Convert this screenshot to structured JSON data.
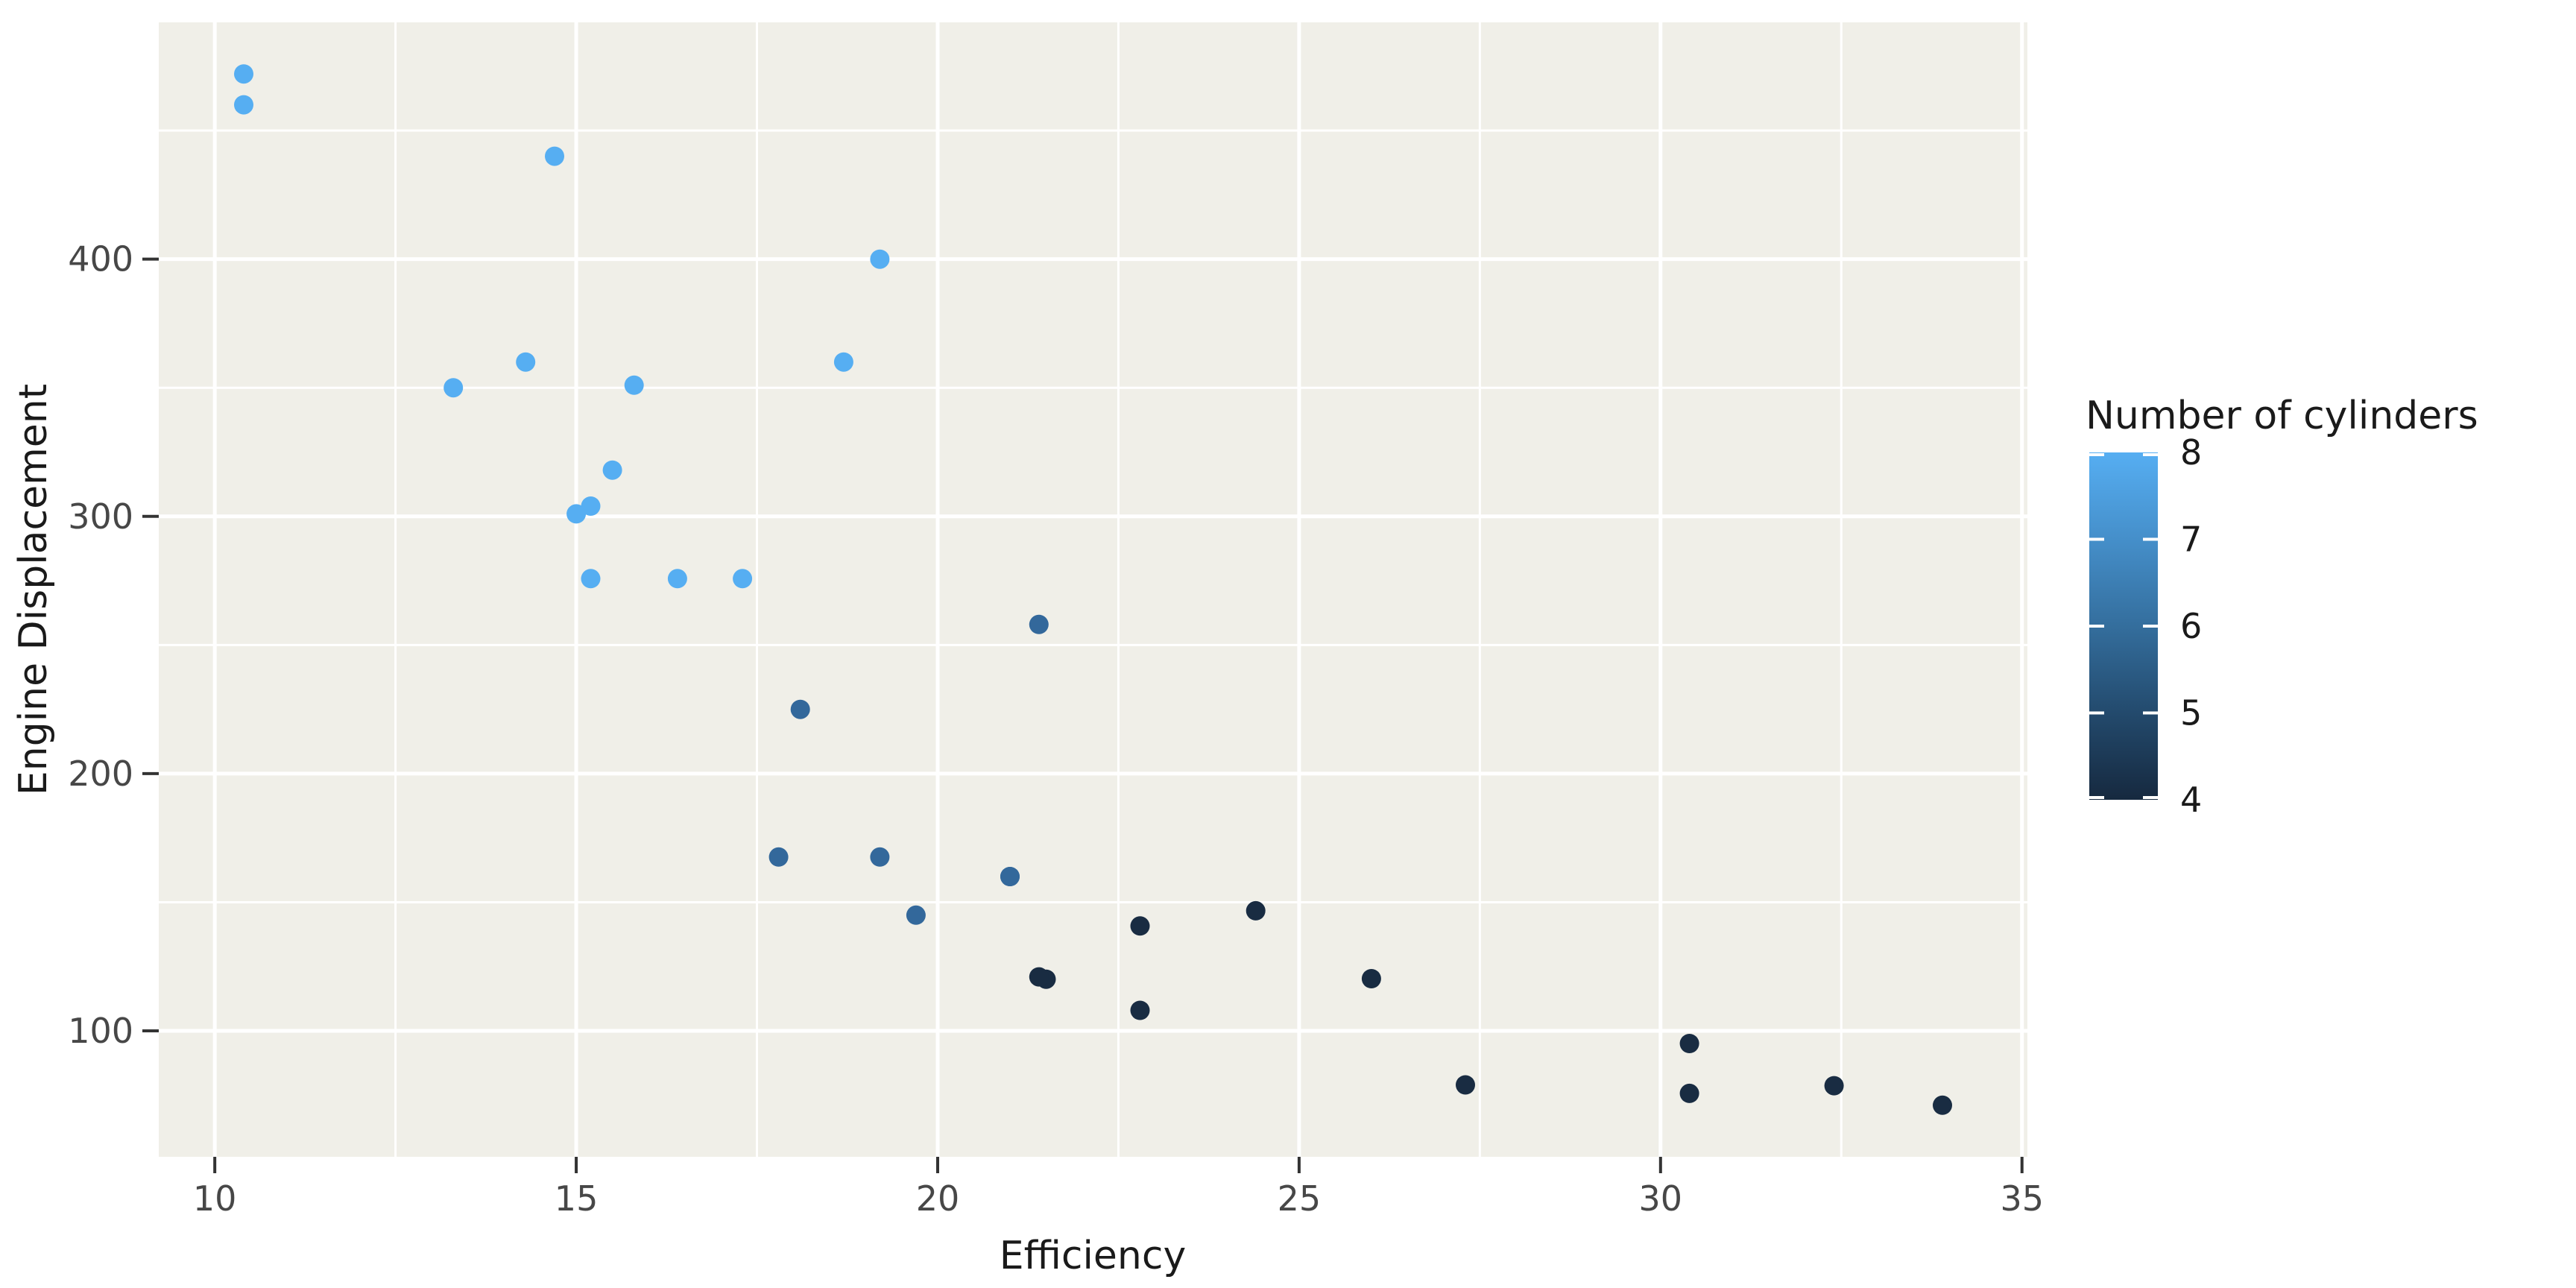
{
  "figure": {
    "background": "#ffffff",
    "panel_background": "#F0EFE8",
    "grid_color": "#ffffff",
    "tick_mark_color": "#333333",
    "tick_label_color": "#474747"
  },
  "chart_data": {
    "type": "scatter",
    "title": "",
    "xlabel": "Efficiency",
    "ylabel": "Engine Displacement",
    "xlim": [
      9.225,
      35.075
    ],
    "ylim": [
      51.05,
      492.05
    ],
    "x_ticks": [
      10,
      15,
      20,
      25,
      30,
      35
    ],
    "y_ticks": [
      100,
      200,
      300,
      400
    ],
    "x_minor_ticks": [
      12.5,
      17.5,
      22.5,
      27.5,
      32.5
    ],
    "y_minor_ticks": [
      150,
      250,
      350,
      450
    ],
    "grid": true,
    "point_radius_px": 13,
    "color_variable": "Number of cylinders",
    "colors": {
      "4": "#192C42",
      "6": "#33689B",
      "8": "#56AEF2"
    },
    "legend": {
      "title": "Number of cylinders",
      "position": "right",
      "style": "colorbar",
      "limits": [
        4,
        8
      ],
      "ticks": [
        8,
        7,
        6,
        5,
        4
      ],
      "high_color": "#56AEF2",
      "low_color": "#16293F",
      "gradient_stops": [
        {
          "offset": 0,
          "color": "#56AEF2"
        },
        {
          "offset": 0.25,
          "color": "#458FCA"
        },
        {
          "offset": 0.5,
          "color": "#346E9D"
        },
        {
          "offset": 0.75,
          "color": "#234A6D"
        },
        {
          "offset": 1,
          "color": "#16293F"
        }
      ]
    },
    "points": [
      {
        "x": 21.0,
        "y": 160.0,
        "cyl": 6
      },
      {
        "x": 21.0,
        "y": 160.0,
        "cyl": 6
      },
      {
        "x": 22.8,
        "y": 108.0,
        "cyl": 4
      },
      {
        "x": 21.4,
        "y": 258.0,
        "cyl": 6
      },
      {
        "x": 18.7,
        "y": 360.0,
        "cyl": 8
      },
      {
        "x": 18.1,
        "y": 225.0,
        "cyl": 6
      },
      {
        "x": 14.3,
        "y": 360.0,
        "cyl": 8
      },
      {
        "x": 24.4,
        "y": 146.7,
        "cyl": 4
      },
      {
        "x": 22.8,
        "y": 140.8,
        "cyl": 4
      },
      {
        "x": 19.2,
        "y": 167.6,
        "cyl": 6
      },
      {
        "x": 17.8,
        "y": 167.6,
        "cyl": 6
      },
      {
        "x": 16.4,
        "y": 275.8,
        "cyl": 8
      },
      {
        "x": 17.3,
        "y": 275.8,
        "cyl": 8
      },
      {
        "x": 15.2,
        "y": 275.8,
        "cyl": 8
      },
      {
        "x": 10.4,
        "y": 472.0,
        "cyl": 8
      },
      {
        "x": 10.4,
        "y": 460.0,
        "cyl": 8
      },
      {
        "x": 14.7,
        "y": 440.0,
        "cyl": 8
      },
      {
        "x": 32.4,
        "y": 78.7,
        "cyl": 4
      },
      {
        "x": 30.4,
        "y": 75.7,
        "cyl": 4
      },
      {
        "x": 33.9,
        "y": 71.1,
        "cyl": 4
      },
      {
        "x": 21.5,
        "y": 120.1,
        "cyl": 4
      },
      {
        "x": 15.5,
        "y": 318.0,
        "cyl": 8
      },
      {
        "x": 15.2,
        "y": 304.0,
        "cyl": 8
      },
      {
        "x": 13.3,
        "y": 350.0,
        "cyl": 8
      },
      {
        "x": 19.2,
        "y": 400.0,
        "cyl": 8
      },
      {
        "x": 27.3,
        "y": 79.0,
        "cyl": 4
      },
      {
        "x": 26.0,
        "y": 120.3,
        "cyl": 4
      },
      {
        "x": 30.4,
        "y": 95.1,
        "cyl": 4
      },
      {
        "x": 15.8,
        "y": 351.0,
        "cyl": 8
      },
      {
        "x": 19.7,
        "y": 145.0,
        "cyl": 6
      },
      {
        "x": 15.0,
        "y": 301.0,
        "cyl": 8
      },
      {
        "x": 21.4,
        "y": 121.0,
        "cyl": 4
      }
    ]
  }
}
